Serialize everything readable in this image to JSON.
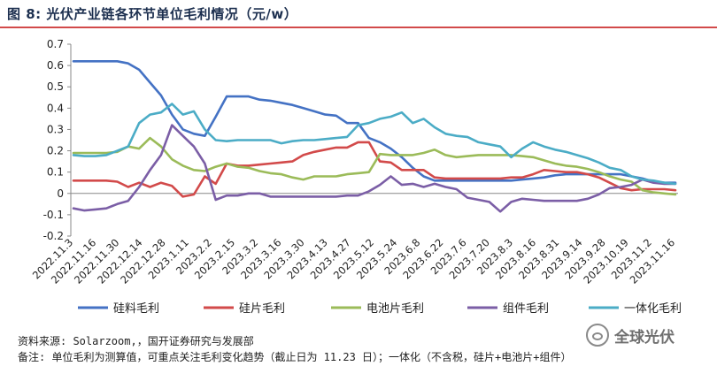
{
  "header": {
    "title": "图 8:  光伏产业链各环节单位毛利情况（元/w）"
  },
  "footer": {
    "source": "资料来源: Solarzoom,，国开证券研究与发展部",
    "note": "备注:  单位毛利为测算值，可重点关注毛利变化趋势（截止日为 11.23 日）；一体化（不含税，硅片+电池片+组件）"
  },
  "watermark": {
    "text": "全球光伏"
  },
  "chart_data": {
    "type": "line",
    "title": "光伏产业链各环节单位毛利情况（元/w）",
    "xlabel": "",
    "ylabel": "",
    "ylim": [
      -0.2,
      0.7
    ],
    "yticks": [
      -0.2,
      -0.1,
      0,
      0.1,
      0.2,
      0.3,
      0.4,
      0.5,
      0.6,
      0.7
    ],
    "grid": false,
    "legend_position": "bottom",
    "x_tick_labels": [
      "2022.11.3",
      "2022.11.16",
      "2022.11.30",
      "2022.12.14",
      "2022.12.28",
      "2023.1.11",
      "2023.2.2",
      "2023.2.15",
      "2023.3.2",
      "2023.3.16",
      "2023.3.30",
      "2023.4.13",
      "2023.4.27",
      "2023.5.12",
      "2023.5.24",
      "2023.6.8",
      "2023.6.22",
      "2023.7.6",
      "2023.7.20",
      "2023.8.3",
      "2023.8.16",
      "2023.8.31",
      "2023.9.14",
      "2023.9.28",
      "2023.10.19",
      "2023.11.2",
      "2023.11.16"
    ],
    "series": [
      {
        "name": "硅料毛利",
        "color": "#4472c4",
        "values": [
          0.62,
          0.62,
          0.62,
          0.62,
          0.62,
          0.61,
          0.58,
          0.52,
          0.46,
          0.37,
          0.3,
          0.28,
          0.27,
          0.36,
          0.455,
          0.455,
          0.455,
          0.44,
          0.435,
          0.425,
          0.415,
          0.4,
          0.385,
          0.37,
          0.365,
          0.33,
          0.33,
          0.26,
          0.24,
          0.21,
          0.17,
          0.12,
          0.08,
          0.06,
          0.06,
          0.06,
          0.06,
          0.06,
          0.06,
          0.06,
          0.06,
          0.065,
          0.07,
          0.075,
          0.085,
          0.09,
          0.09,
          0.09,
          0.09,
          0.09,
          0.09,
          0.08,
          0.07,
          0.055,
          0.05,
          0.05
        ]
      },
      {
        "name": "硅片毛利",
        "color": "#d24a4a",
        "values": [
          0.06,
          0.06,
          0.06,
          0.06,
          0.055,
          0.03,
          0.05,
          0.03,
          0.05,
          0.035,
          -0.015,
          -0.005,
          0.08,
          0.045,
          0.14,
          0.13,
          0.13,
          0.135,
          0.14,
          0.145,
          0.15,
          0.18,
          0.195,
          0.205,
          0.215,
          0.215,
          0.24,
          0.24,
          0.15,
          0.145,
          0.11,
          0.11,
          0.11,
          0.075,
          0.07,
          0.07,
          0.07,
          0.07,
          0.07,
          0.07,
          0.075,
          0.075,
          0.09,
          0.11,
          0.105,
          0.1,
          0.1,
          0.09,
          0.075,
          0.05,
          0.025,
          0.015,
          0.02,
          0.02,
          0.02,
          0.015
        ]
      },
      {
        "name": "电池片毛利",
        "color": "#9bbb59",
        "values": [
          0.19,
          0.19,
          0.19,
          0.19,
          0.195,
          0.22,
          0.21,
          0.26,
          0.22,
          0.16,
          0.13,
          0.11,
          0.105,
          0.125,
          0.14,
          0.125,
          0.12,
          0.105,
          0.095,
          0.09,
          0.075,
          0.065,
          0.08,
          0.08,
          0.08,
          0.09,
          0.095,
          0.1,
          0.185,
          0.18,
          0.18,
          0.18,
          0.19,
          0.205,
          0.18,
          0.17,
          0.175,
          0.18,
          0.18,
          0.18,
          0.18,
          0.175,
          0.17,
          0.155,
          0.14,
          0.13,
          0.125,
          0.115,
          0.1,
          0.08,
          0.065,
          0.055,
          0.015,
          0.005,
          0.0,
          -0.005
        ]
      },
      {
        "name": "组件毛利",
        "color": "#7b5ea6",
        "values": [
          -0.07,
          -0.08,
          -0.075,
          -0.07,
          -0.05,
          -0.035,
          0.03,
          0.11,
          0.18,
          0.32,
          0.27,
          0.22,
          0.14,
          -0.03,
          -0.01,
          -0.01,
          0.0,
          0.0,
          -0.015,
          -0.015,
          -0.015,
          -0.015,
          -0.015,
          -0.015,
          -0.015,
          -0.01,
          -0.01,
          0.01,
          0.04,
          0.08,
          0.04,
          0.045,
          0.03,
          0.045,
          0.03,
          0.02,
          -0.02,
          -0.03,
          -0.04,
          -0.085,
          -0.04,
          -0.025,
          -0.03,
          -0.035,
          -0.035,
          -0.035,
          -0.035,
          -0.025,
          -0.005,
          0.025,
          0.03,
          0.04,
          0.065,
          0.05,
          0.045,
          0.045
        ]
      },
      {
        "name": "一体化毛利",
        "color": "#4bacc6",
        "values": [
          0.18,
          0.175,
          0.175,
          0.18,
          0.2,
          0.22,
          0.33,
          0.37,
          0.38,
          0.42,
          0.37,
          0.385,
          0.3,
          0.25,
          0.245,
          0.25,
          0.25,
          0.25,
          0.25,
          0.235,
          0.245,
          0.25,
          0.25,
          0.255,
          0.26,
          0.265,
          0.32,
          0.33,
          0.35,
          0.36,
          0.38,
          0.33,
          0.35,
          0.31,
          0.28,
          0.27,
          0.265,
          0.24,
          0.23,
          0.22,
          0.17,
          0.21,
          0.24,
          0.22,
          0.205,
          0.195,
          0.18,
          0.165,
          0.145,
          0.12,
          0.11,
          0.08,
          0.065,
          0.06,
          0.05,
          0.045
        ]
      }
    ]
  }
}
